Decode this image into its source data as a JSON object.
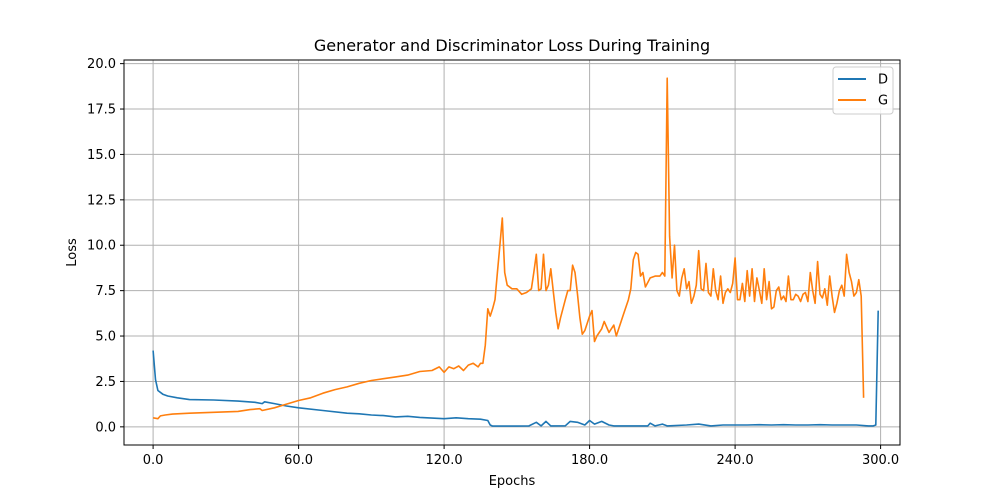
{
  "chart_data": {
    "type": "line",
    "title": "Generator and Discriminator Loss During Training",
    "xlabel": "Epochs",
    "ylabel": "Loss",
    "xlim": [
      -12,
      308
    ],
    "ylim": [
      -1.0,
      20.2
    ],
    "xticks": [
      0,
      60,
      120,
      180,
      240,
      300
    ],
    "xtick_labels": [
      "0.0",
      "60.0",
      "120.0",
      "180.0",
      "240.0",
      "300.0"
    ],
    "yticks": [
      0,
      2.5,
      5,
      7.5,
      10,
      12.5,
      15,
      17.5,
      20
    ],
    "ytick_labels": [
      "0.0",
      "2.5",
      "5.0",
      "7.5",
      "10.0",
      "12.5",
      "15.0",
      "17.5",
      "20.0"
    ],
    "grid": true,
    "legend_position": "top-right",
    "series": [
      {
        "name": "D",
        "color": "#1f77b4",
        "points": [
          [
            0,
            4.2
          ],
          [
            1,
            2.6
          ],
          [
            2,
            2.0
          ],
          [
            4,
            1.8
          ],
          [
            6,
            1.7
          ],
          [
            10,
            1.6
          ],
          [
            15,
            1.5
          ],
          [
            25,
            1.48
          ],
          [
            35,
            1.42
          ],
          [
            42,
            1.35
          ],
          [
            45,
            1.28
          ],
          [
            46,
            1.38
          ],
          [
            50,
            1.28
          ],
          [
            55,
            1.15
          ],
          [
            60,
            1.05
          ],
          [
            70,
            0.9
          ],
          [
            80,
            0.75
          ],
          [
            85,
            0.72
          ],
          [
            90,
            0.65
          ],
          [
            95,
            0.62
          ],
          [
            100,
            0.55
          ],
          [
            105,
            0.58
          ],
          [
            110,
            0.52
          ],
          [
            115,
            0.48
          ],
          [
            120,
            0.45
          ],
          [
            125,
            0.5
          ],
          [
            130,
            0.45
          ],
          [
            135,
            0.42
          ],
          [
            138,
            0.35
          ],
          [
            139,
            0.1
          ],
          [
            140,
            0.04
          ],
          [
            145,
            0.04
          ],
          [
            150,
            0.04
          ],
          [
            155,
            0.05
          ],
          [
            158,
            0.25
          ],
          [
            160,
            0.05
          ],
          [
            162,
            0.3
          ],
          [
            164,
            0.05
          ],
          [
            170,
            0.06
          ],
          [
            172,
            0.3
          ],
          [
            175,
            0.25
          ],
          [
            178,
            0.1
          ],
          [
            180,
            0.35
          ],
          [
            182,
            0.15
          ],
          [
            185,
            0.3
          ],
          [
            188,
            0.1
          ],
          [
            190,
            0.05
          ],
          [
            200,
            0.05
          ],
          [
            204,
            0.05
          ],
          [
            205,
            0.2
          ],
          [
            207,
            0.05
          ],
          [
            210,
            0.15
          ],
          [
            212,
            0.05
          ],
          [
            220,
            0.1
          ],
          [
            225,
            0.15
          ],
          [
            230,
            0.05
          ],
          [
            235,
            0.1
          ],
          [
            240,
            0.1
          ],
          [
            245,
            0.1
          ],
          [
            250,
            0.12
          ],
          [
            255,
            0.1
          ],
          [
            260,
            0.12
          ],
          [
            265,
            0.1
          ],
          [
            270,
            0.1
          ],
          [
            275,
            0.12
          ],
          [
            280,
            0.1
          ],
          [
            285,
            0.1
          ],
          [
            290,
            0.1
          ],
          [
            295,
            0.05
          ],
          [
            297,
            0.05
          ],
          [
            298,
            0.1
          ],
          [
            299,
            6.4
          ]
        ]
      },
      {
        "name": "G",
        "color": "#ff7f0e",
        "points": [
          [
            0,
            0.5
          ],
          [
            2,
            0.45
          ],
          [
            3,
            0.6
          ],
          [
            5,
            0.65
          ],
          [
            8,
            0.7
          ],
          [
            15,
            0.75
          ],
          [
            25,
            0.8
          ],
          [
            35,
            0.85
          ],
          [
            40,
            0.95
          ],
          [
            44,
            1.0
          ],
          [
            45,
            0.9
          ],
          [
            50,
            1.05
          ],
          [
            55,
            1.25
          ],
          [
            60,
            1.45
          ],
          [
            65,
            1.6
          ],
          [
            70,
            1.85
          ],
          [
            75,
            2.05
          ],
          [
            80,
            2.2
          ],
          [
            85,
            2.4
          ],
          [
            90,
            2.55
          ],
          [
            95,
            2.65
          ],
          [
            100,
            2.75
          ],
          [
            105,
            2.85
          ],
          [
            110,
            3.05
          ],
          [
            115,
            3.1
          ],
          [
            118,
            3.3
          ],
          [
            120,
            3.0
          ],
          [
            122,
            3.3
          ],
          [
            124,
            3.2
          ],
          [
            126,
            3.35
          ],
          [
            128,
            3.1
          ],
          [
            130,
            3.4
          ],
          [
            132,
            3.5
          ],
          [
            134,
            3.3
          ],
          [
            135,
            3.5
          ],
          [
            136,
            3.5
          ],
          [
            137,
            4.5
          ],
          [
            138,
            6.5
          ],
          [
            139,
            6.1
          ],
          [
            140,
            6.5
          ],
          [
            141,
            7.0
          ],
          [
            142,
            8.5
          ],
          [
            143,
            10.0
          ],
          [
            144,
            11.5
          ],
          [
            145,
            8.5
          ],
          [
            146,
            7.8
          ],
          [
            148,
            7.6
          ],
          [
            150,
            7.6
          ],
          [
            152,
            7.3
          ],
          [
            154,
            7.4
          ],
          [
            156,
            7.6
          ],
          [
            157,
            8.5
          ],
          [
            158,
            9.5
          ],
          [
            159,
            7.5
          ],
          [
            160,
            7.6
          ],
          [
            161,
            9.5
          ],
          [
            162,
            7.5
          ],
          [
            163,
            7.8
          ],
          [
            164,
            8.7
          ],
          [
            165,
            7.5
          ],
          [
            166,
            6.3
          ],
          [
            167,
            5.4
          ],
          [
            168,
            6.0
          ],
          [
            170,
            7.0
          ],
          [
            171,
            7.5
          ],
          [
            172,
            7.5
          ],
          [
            173,
            8.9
          ],
          [
            174,
            8.5
          ],
          [
            175,
            7.3
          ],
          [
            176,
            6.0
          ],
          [
            177,
            5.1
          ],
          [
            178,
            5.3
          ],
          [
            180,
            6.1
          ],
          [
            181,
            6.4
          ],
          [
            182,
            4.7
          ],
          [
            183,
            5.0
          ],
          [
            185,
            5.4
          ],
          [
            186,
            5.8
          ],
          [
            188,
            5.2
          ],
          [
            190,
            5.6
          ],
          [
            191,
            5.0
          ],
          [
            192,
            5.4
          ],
          [
            194,
            6.2
          ],
          [
            196,
            7.0
          ],
          [
            197,
            7.6
          ],
          [
            198,
            9.2
          ],
          [
            199,
            9.6
          ],
          [
            200,
            9.5
          ],
          [
            201,
            8.3
          ],
          [
            202,
            8.5
          ],
          [
            203,
            7.7
          ],
          [
            205,
            8.2
          ],
          [
            207,
            8.3
          ],
          [
            209,
            8.3
          ],
          [
            210,
            8.5
          ],
          [
            211,
            8.3
          ],
          [
            212,
            19.2
          ],
          [
            213,
            10.5
          ],
          [
            214,
            8.2
          ],
          [
            215,
            10.0
          ],
          [
            216,
            7.5
          ],
          [
            217,
            7.2
          ],
          [
            218,
            8.2
          ],
          [
            219,
            8.7
          ],
          [
            220,
            7.6
          ],
          [
            221,
            8.0
          ],
          [
            222,
            6.8
          ],
          [
            223,
            7.2
          ],
          [
            224,
            7.8
          ],
          [
            225,
            9.7
          ],
          [
            226,
            7.6
          ],
          [
            227,
            7.5
          ],
          [
            228,
            9.0
          ],
          [
            229,
            7.4
          ],
          [
            230,
            7.2
          ],
          [
            231,
            8.7
          ],
          [
            232,
            7.5
          ],
          [
            233,
            7.0
          ],
          [
            234,
            8.3
          ],
          [
            235,
            6.8
          ],
          [
            236,
            7.4
          ],
          [
            237,
            7.6
          ],
          [
            238,
            7.4
          ],
          [
            239,
            7.9
          ],
          [
            240,
            9.3
          ],
          [
            241,
            7.0
          ],
          [
            242,
            7.0
          ],
          [
            243,
            7.9
          ],
          [
            244,
            6.9
          ],
          [
            245,
            8.6
          ],
          [
            246,
            7.2
          ],
          [
            247,
            8.7
          ],
          [
            248,
            6.9
          ],
          [
            249,
            8.2
          ],
          [
            250,
            7.5
          ],
          [
            251,
            6.8
          ],
          [
            252,
            8.7
          ],
          [
            253,
            7.0
          ],
          [
            254,
            8.0
          ],
          [
            255,
            6.5
          ],
          [
            256,
            6.6
          ],
          [
            257,
            7.5
          ],
          [
            258,
            7.7
          ],
          [
            259,
            7.0
          ],
          [
            260,
            7.2
          ],
          [
            261,
            6.9
          ],
          [
            262,
            8.3
          ],
          [
            263,
            7.0
          ],
          [
            264,
            7.0
          ],
          [
            265,
            7.3
          ],
          [
            266,
            7.2
          ],
          [
            267,
            6.9
          ],
          [
            268,
            7.3
          ],
          [
            269,
            7.4
          ],
          [
            270,
            6.9
          ],
          [
            271,
            8.5
          ],
          [
            272,
            7.5
          ],
          [
            273,
            6.8
          ],
          [
            274,
            9.1
          ],
          [
            275,
            7.3
          ],
          [
            276,
            7.1
          ],
          [
            277,
            7.6
          ],
          [
            278,
            6.7
          ],
          [
            279,
            8.3
          ],
          [
            280,
            7.2
          ],
          [
            281,
            6.3
          ],
          [
            282,
            6.8
          ],
          [
            283,
            7.5
          ],
          [
            284,
            7.8
          ],
          [
            285,
            7.2
          ],
          [
            286,
            9.5
          ],
          [
            287,
            8.5
          ],
          [
            288,
            8.0
          ],
          [
            289,
            7.2
          ],
          [
            290,
            7.4
          ],
          [
            291,
            8.1
          ],
          [
            292,
            7.2
          ],
          [
            293,
            1.6
          ]
        ]
      }
    ]
  }
}
